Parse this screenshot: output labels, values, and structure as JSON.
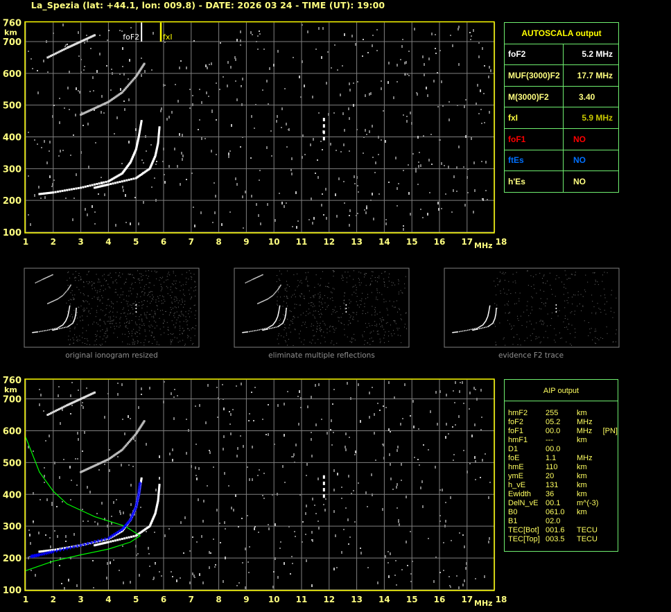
{
  "header": {
    "title": "La_Spezia (lat: +44.1, lon: 009.8) - DATE: 2026 03 24 - TIME (UT): 19:00"
  },
  "colors": {
    "axis": "#ffff00",
    "grid": "#808080",
    "trace": "#ffffff",
    "fit": "#0000ff",
    "profile": "#00ff00",
    "foF1": "#ff0000",
    "ftEs": "#0070ff",
    "fxI": "#c8c800",
    "border": "#70f070"
  },
  "markers": {
    "foF2": "foF2",
    "fxI": "fxI"
  },
  "axes": {
    "y_unit": "km",
    "x_unit": "MHz",
    "y_ticks": [
      "760",
      "700",
      "600",
      "500",
      "400",
      "300",
      "200",
      "100"
    ],
    "x_ticks": [
      "1",
      "2",
      "3",
      "4",
      "5",
      "6",
      "7",
      "8",
      "9",
      "10",
      "11",
      "12",
      "13",
      "14",
      "15",
      "16",
      "17",
      "18"
    ]
  },
  "autoscala": {
    "title": "AUTOSCALA output",
    "rows": [
      {
        "label": "foF2",
        "value": "5.2 MHz"
      },
      {
        "label": "MUF(3000)F2",
        "value": "17.7 MHz"
      },
      {
        "label": "M(3000)F2",
        "value": "3.40"
      },
      {
        "label": "fxI",
        "value": "5.9 MHz"
      },
      {
        "label": "foF1",
        "value": "NO"
      },
      {
        "label": "ftEs",
        "value": "NO"
      },
      {
        "label": "h'Es",
        "value": "NO"
      }
    ]
  },
  "thumbnails": [
    {
      "caption": "original ionogram resized"
    },
    {
      "caption": "eliminate multiple reflections"
    },
    {
      "caption": "evidence F2 trace"
    }
  ],
  "aip": {
    "title": "AIP output",
    "rows": [
      [
        "hmF2",
        "255",
        "km",
        ""
      ],
      [
        "foF2",
        "05.2",
        "MHz",
        ""
      ],
      [
        "foF1",
        "00.0",
        "MHz",
        "[PN]"
      ],
      [
        "hmF1",
        "---",
        "km",
        ""
      ],
      [
        "D1",
        "00.0",
        "",
        ""
      ],
      [
        "foE",
        "1.1",
        "MHz",
        ""
      ],
      [
        "hmE",
        "110",
        "km",
        ""
      ],
      [
        "ymE",
        "20",
        "km",
        ""
      ],
      [
        "h_vE",
        "131",
        "km",
        ""
      ],
      [
        "Ewidth",
        "36",
        "km",
        ""
      ],
      [
        "DelN_vE",
        "00.1",
        "m^(-3)",
        ""
      ],
      [
        "B0",
        "061.0",
        "km",
        ""
      ],
      [
        "B1",
        "02.0",
        "",
        ""
      ],
      [
        "TEC[Bot]",
        "001.6",
        "TECU",
        ""
      ],
      [
        "TEC[Top]",
        "003.5",
        "TECU",
        ""
      ]
    ]
  },
  "chart_data": {
    "type": "scatter",
    "xlabel": "MHz",
    "ylabel": "km",
    "xlim": [
      1,
      18
    ],
    "ylim": [
      100,
      760
    ],
    "grid": true,
    "series": [
      {
        "role": "F2 O-trace",
        "x": [
          1.5,
          2,
          3,
          4,
          4.5,
          4.8,
          5.0,
          5.1,
          5.2
        ],
        "y": [
          220,
          225,
          240,
          260,
          285,
          320,
          360,
          400,
          450
        ]
      },
      {
        "role": "F2 X-trace",
        "x": [
          3.5,
          4,
          5,
          5.5,
          5.7,
          5.8,
          5.85
        ],
        "y": [
          240,
          250,
          270,
          300,
          340,
          380,
          430
        ]
      },
      {
        "role": "second hop",
        "x": [
          3,
          3.5,
          4,
          4.5,
          5,
          5.3
        ],
        "y": [
          470,
          490,
          510,
          540,
          590,
          630
        ]
      },
      {
        "role": "third hop",
        "x": [
          1.8,
          2.5,
          3,
          3.5
        ],
        "y": [
          650,
          680,
          700,
          720
        ]
      },
      {
        "role": "AIP fitted trace",
        "x": [
          1.2,
          1.5,
          2,
          3,
          4,
          4.5,
          4.8,
          5,
          5.1,
          5.15
        ],
        "y": [
          205,
          210,
          220,
          240,
          262,
          290,
          320,
          360,
          400,
          435
        ]
      },
      {
        "role": "AIP profile",
        "x": [
          1,
          2,
          3,
          4,
          4.8,
          5.15,
          4.6,
          3.5,
          2.5,
          2,
          1.5,
          1
        ],
        "y": [
          160,
          190,
          210,
          228,
          250,
          270,
          300,
          330,
          370,
          410,
          470,
          580
        ]
      }
    ],
    "markers": {
      "foF2": 5.2,
      "fxI": 5.9
    }
  }
}
